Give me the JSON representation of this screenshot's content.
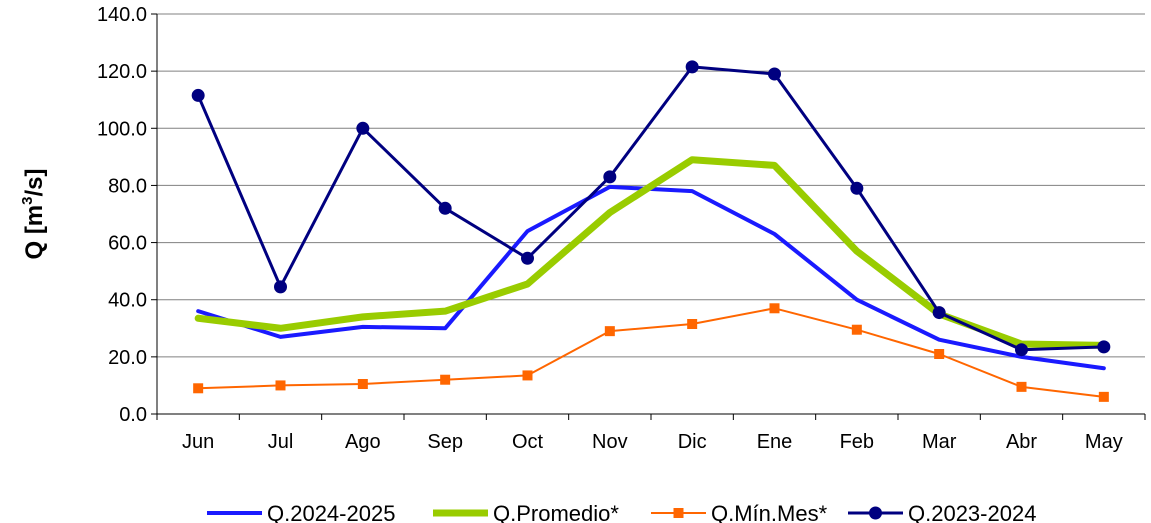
{
  "chart_data": {
    "type": "line",
    "ylabel_main": "Q [m",
    "ylabel_sup": "3",
    "ylabel_tail": "/s]",
    "ylim": [
      0,
      140
    ],
    "yticks": [
      "0.0",
      "20.0",
      "40.0",
      "60.0",
      "80.0",
      "100.0",
      "120.0",
      "140.0"
    ],
    "ytick_values": [
      0,
      20,
      40,
      60,
      80,
      100,
      120,
      140
    ],
    "grid": true,
    "legend_position": "bottom",
    "categories": [
      "Jun",
      "Jul",
      "Ago",
      "Sep",
      "Oct",
      "Nov",
      "Dic",
      "Ene",
      "Feb",
      "Mar",
      "Abr",
      "May"
    ],
    "series": [
      {
        "name": "Q.2024-2025",
        "color": "#1a1aff",
        "marker": "none",
        "width": 4,
        "values": [
          36,
          27,
          30.5,
          30,
          64,
          79.5,
          78,
          63,
          40,
          26,
          20,
          16
        ]
      },
      {
        "name": "Q.Promedio*",
        "color": "#99cc00",
        "marker": "none",
        "width": 7,
        "values": [
          33.5,
          30,
          34,
          36,
          45.5,
          70.5,
          89,
          87,
          57,
          35,
          24.5,
          24
        ]
      },
      {
        "name": "Q.Mín.Mes*",
        "color": "#ff6600",
        "marker": "square",
        "width": 2,
        "values": [
          9,
          10,
          10.5,
          12,
          13.5,
          29,
          31.5,
          37,
          29.5,
          21,
          9.5,
          6
        ]
      },
      {
        "name": "Q.2023-2024",
        "color": "#000080",
        "marker": "circle",
        "width": 3,
        "values": [
          111.5,
          44.5,
          100,
          72,
          54.5,
          83,
          121.5,
          119,
          79,
          35.5,
          22.5,
          23.5
        ]
      }
    ]
  }
}
